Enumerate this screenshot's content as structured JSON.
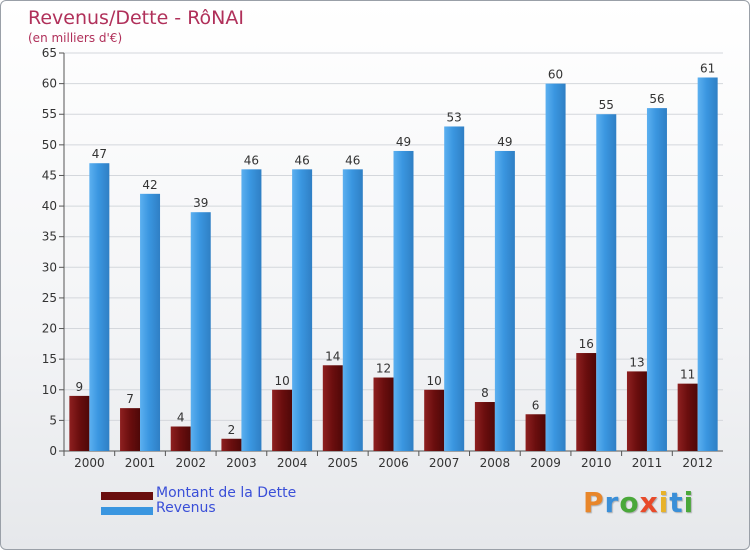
{
  "header": {
    "title": "Revenus/Dette - RôNAI",
    "subtitle": "(en milliers d'€)"
  },
  "legend": {
    "dette_label": "Montant de la Dette",
    "revenus_label": "Revenus"
  },
  "logo": {
    "text": "Proxiti"
  },
  "colors": {
    "dette": "#7a1414",
    "revenus": "#3a96e0",
    "title": "#b0305a",
    "legend_text": "#3a4fd8"
  },
  "chart_data": {
    "type": "bar",
    "title": "Revenus/Dette - RôNAI",
    "subtitle": "(en milliers d'€)",
    "categories": [
      "2000",
      "2001",
      "2002",
      "2003",
      "2004",
      "2005",
      "2006",
      "2007",
      "2008",
      "2009",
      "2010",
      "2011",
      "2012"
    ],
    "series": [
      {
        "name": "Montant de la Dette",
        "values": [
          9,
          7,
          4,
          2,
          10,
          14,
          12,
          10,
          8,
          6,
          16,
          13,
          11
        ]
      },
      {
        "name": "Revenus",
        "values": [
          47,
          42,
          39,
          46,
          46,
          46,
          49,
          53,
          49,
          60,
          55,
          56,
          61
        ]
      }
    ],
    "ylim": [
      0,
      65
    ],
    "yticks": [
      0,
      5,
      10,
      15,
      20,
      25,
      30,
      35,
      40,
      45,
      50,
      55,
      60,
      65
    ],
    "grid": true,
    "legend": "bottom-left"
  }
}
